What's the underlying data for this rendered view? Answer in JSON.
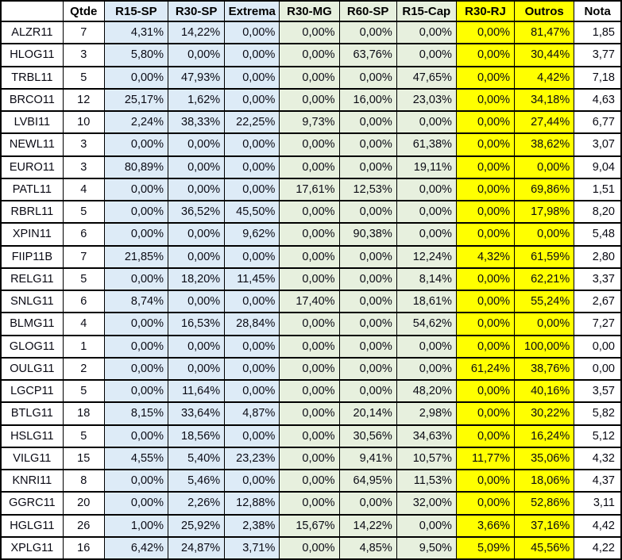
{
  "chart_data": {
    "type": "table",
    "title": "",
    "columns": [
      "",
      "Qtde",
      "R15-SP",
      "R30-SP",
      "Extrema",
      "R30-MG",
      "R60-SP",
      "R15-Cap",
      "R30-RJ",
      "Outros",
      "Nota"
    ],
    "rows": [
      [
        "ALZR11",
        "7",
        "4,31%",
        "14,22%",
        "0,00%",
        "0,00%",
        "0,00%",
        "0,00%",
        "0,00%",
        "81,47%",
        "1,85"
      ],
      [
        "HLOG11",
        "3",
        "5,80%",
        "0,00%",
        "0,00%",
        "0,00%",
        "63,76%",
        "0,00%",
        "0,00%",
        "30,44%",
        "3,77"
      ],
      [
        "TRBL11",
        "5",
        "0,00%",
        "47,93%",
        "0,00%",
        "0,00%",
        "0,00%",
        "47,65%",
        "0,00%",
        "4,42%",
        "7,18"
      ],
      [
        "BRCO11",
        "12",
        "25,17%",
        "1,62%",
        "0,00%",
        "0,00%",
        "16,00%",
        "23,03%",
        "0,00%",
        "34,18%",
        "4,63"
      ],
      [
        "LVBI11",
        "10",
        "2,24%",
        "38,33%",
        "22,25%",
        "9,73%",
        "0,00%",
        "0,00%",
        "0,00%",
        "27,44%",
        "6,77"
      ],
      [
        "NEWL11",
        "3",
        "0,00%",
        "0,00%",
        "0,00%",
        "0,00%",
        "0,00%",
        "61,38%",
        "0,00%",
        "38,62%",
        "3,07"
      ],
      [
        "EURO11",
        "3",
        "80,89%",
        "0,00%",
        "0,00%",
        "0,00%",
        "0,00%",
        "19,11%",
        "0,00%",
        "0,00%",
        "9,04"
      ],
      [
        "PATL11",
        "4",
        "0,00%",
        "0,00%",
        "0,00%",
        "17,61%",
        "12,53%",
        "0,00%",
        "0,00%",
        "69,86%",
        "1,51"
      ],
      [
        "RBRL11",
        "5",
        "0,00%",
        "36,52%",
        "45,50%",
        "0,00%",
        "0,00%",
        "0,00%",
        "0,00%",
        "17,98%",
        "8,20"
      ],
      [
        "XPIN11",
        "6",
        "0,00%",
        "0,00%",
        "9,62%",
        "0,00%",
        "90,38%",
        "0,00%",
        "0,00%",
        "0,00%",
        "5,48"
      ],
      [
        "FIIP11B",
        "7",
        "21,85%",
        "0,00%",
        "0,00%",
        "0,00%",
        "0,00%",
        "12,24%",
        "4,32%",
        "61,59%",
        "2,80"
      ],
      [
        "RELG11",
        "5",
        "0,00%",
        "18,20%",
        "11,45%",
        "0,00%",
        "0,00%",
        "8,14%",
        "0,00%",
        "62,21%",
        "3,37"
      ],
      [
        "SNLG11",
        "6",
        "8,74%",
        "0,00%",
        "0,00%",
        "17,40%",
        "0,00%",
        "18,61%",
        "0,00%",
        "55,24%",
        "2,67"
      ],
      [
        "BLMG11",
        "4",
        "0,00%",
        "16,53%",
        "28,84%",
        "0,00%",
        "0,00%",
        "54,62%",
        "0,00%",
        "0,00%",
        "7,27"
      ],
      [
        "GLOG11",
        "1",
        "0,00%",
        "0,00%",
        "0,00%",
        "0,00%",
        "0,00%",
        "0,00%",
        "0,00%",
        "100,00%",
        "0,00"
      ],
      [
        "OULG11",
        "2",
        "0,00%",
        "0,00%",
        "0,00%",
        "0,00%",
        "0,00%",
        "0,00%",
        "61,24%",
        "38,76%",
        "0,00"
      ],
      [
        "LGCP11",
        "5",
        "0,00%",
        "11,64%",
        "0,00%",
        "0,00%",
        "0,00%",
        "48,20%",
        "0,00%",
        "40,16%",
        "3,57"
      ],
      [
        "BTLG11",
        "18",
        "8,15%",
        "33,64%",
        "4,87%",
        "0,00%",
        "20,14%",
        "2,98%",
        "0,00%",
        "30,22%",
        "5,82"
      ],
      [
        "HSLG11",
        "5",
        "0,00%",
        "18,56%",
        "0,00%",
        "0,00%",
        "30,56%",
        "34,63%",
        "0,00%",
        "16,24%",
        "5,12"
      ],
      [
        "VILG11",
        "15",
        "4,55%",
        "5,40%",
        "23,23%",
        "0,00%",
        "9,41%",
        "10,57%",
        "11,77%",
        "35,06%",
        "4,32"
      ],
      [
        "KNRI11",
        "8",
        "0,00%",
        "5,46%",
        "0,00%",
        "0,00%",
        "64,95%",
        "11,53%",
        "0,00%",
        "18,06%",
        "4,37"
      ],
      [
        "GGRC11",
        "20",
        "0,00%",
        "2,26%",
        "12,88%",
        "0,00%",
        "0,00%",
        "32,00%",
        "0,00%",
        "52,86%",
        "3,11"
      ],
      [
        "HGLG11",
        "26",
        "1,00%",
        "25,92%",
        "2,38%",
        "15,67%",
        "14,22%",
        "0,00%",
        "3,66%",
        "37,16%",
        "4,42"
      ],
      [
        "XPLG11",
        "16",
        "6,42%",
        "24,87%",
        "3,71%",
        "0,00%",
        "4,85%",
        "9,50%",
        "5,09%",
        "45,56%",
        "4,22"
      ]
    ]
  },
  "column_styles": [
    "white",
    "white",
    "blue",
    "blue",
    "blue",
    "green",
    "green",
    "green",
    "yellow",
    "yellow",
    "white"
  ],
  "colors": {
    "blue": "#DDEBF7",
    "green": "#E7F0DE",
    "yellow": "#FFFF00",
    "border": "#000000",
    "text": "#0a0a14"
  }
}
